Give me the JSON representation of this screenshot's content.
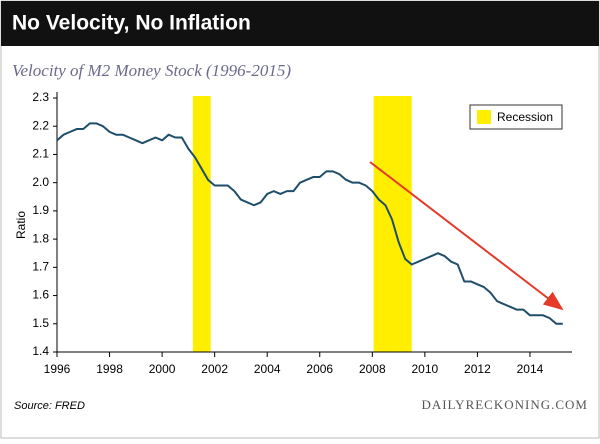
{
  "chart_data": {
    "type": "line",
    "title": "No Velocity, No Inflation",
    "subtitle": "Velocity of M2 Money Stock (1996-2015)",
    "y_label": "Ratio",
    "source": "Source: FRED",
    "brand": "DAILYRECKONING.COM",
    "recession_label": "Recession",
    "recession_color": "#ffee00",
    "recessions": [
      {
        "start": 2001.17,
        "end": 2001.85
      },
      {
        "start": 2008.05,
        "end": 2009.5
      }
    ],
    "legend": "upper right",
    "x": [
      1996.0,
      1996.25,
      1996.5,
      1996.75,
      1997.0,
      1997.25,
      1997.5,
      1997.75,
      1998.0,
      1998.25,
      1998.5,
      1998.75,
      1999.0,
      1999.25,
      1999.5,
      1999.75,
      2000.0,
      2000.25,
      2000.5,
      2000.75,
      2001.0,
      2001.25,
      2001.5,
      2001.75,
      2002.0,
      2002.25,
      2002.5,
      2002.75,
      2003.0,
      2003.25,
      2003.5,
      2003.75,
      2004.0,
      2004.25,
      2004.5,
      2004.75,
      2005.0,
      2005.25,
      2005.5,
      2005.75,
      2006.0,
      2006.25,
      2006.5,
      2006.75,
      2007.0,
      2007.25,
      2007.5,
      2007.75,
      2008.0,
      2008.25,
      2008.5,
      2008.75,
      2009.0,
      2009.25,
      2009.5,
      2009.75,
      2010.0,
      2010.25,
      2010.5,
      2010.75,
      2011.0,
      2011.25,
      2011.5,
      2011.75,
      2012.0,
      2012.25,
      2012.5,
      2012.75,
      2013.0,
      2013.25,
      2013.5,
      2013.75,
      2014.0,
      2014.25,
      2014.5,
      2014.75,
      2015.0,
      2015.25
    ],
    "series": [
      {
        "name": "Velocity of M2",
        "color": "#1f4e6b",
        "values": [
          2.15,
          2.17,
          2.18,
          2.19,
          2.19,
          2.21,
          2.21,
          2.2,
          2.18,
          2.17,
          2.17,
          2.16,
          2.15,
          2.14,
          2.15,
          2.16,
          2.15,
          2.17,
          2.16,
          2.16,
          2.12,
          2.09,
          2.05,
          2.01,
          1.99,
          1.99,
          1.99,
          1.97,
          1.94,
          1.93,
          1.92,
          1.93,
          1.96,
          1.97,
          1.96,
          1.97,
          1.97,
          2.0,
          2.01,
          2.02,
          2.02,
          2.04,
          2.04,
          2.03,
          2.01,
          2.0,
          2.0,
          1.99,
          1.97,
          1.94,
          1.92,
          1.87,
          1.79,
          1.73,
          1.71,
          1.72,
          1.73,
          1.74,
          1.75,
          1.74,
          1.72,
          1.71,
          1.65,
          1.65,
          1.64,
          1.63,
          1.61,
          1.58,
          1.57,
          1.56,
          1.55,
          1.55,
          1.53,
          1.53,
          1.53,
          1.52,
          1.5,
          1.5
        ]
      }
    ],
    "xlim": [
      1996,
      2015.6
    ],
    "xticks": [
      1996,
      1998,
      2000,
      2002,
      2004,
      2006,
      2008,
      2010,
      2012,
      2014
    ],
    "ylim": [
      1.4,
      2.3
    ],
    "yticks": [
      {
        "value": 1.4,
        "label": "1.4"
      },
      {
        "value": 1.5,
        "label": "1.5"
      },
      {
        "value": 1.6,
        "label": "1.6"
      },
      {
        "value": 1.7,
        "label": "1.7"
      },
      {
        "value": 1.8,
        "label": "1.8"
      },
      {
        "value": 1.9,
        "label": "1.9"
      },
      {
        "value": 2.0,
        "label": "2.0"
      },
      {
        "value": 2.1,
        "label": "2.1"
      },
      {
        "value": 2.2,
        "label": "2.2"
      },
      {
        "value": 2.3,
        "label": "2.3"
      }
    ]
  }
}
